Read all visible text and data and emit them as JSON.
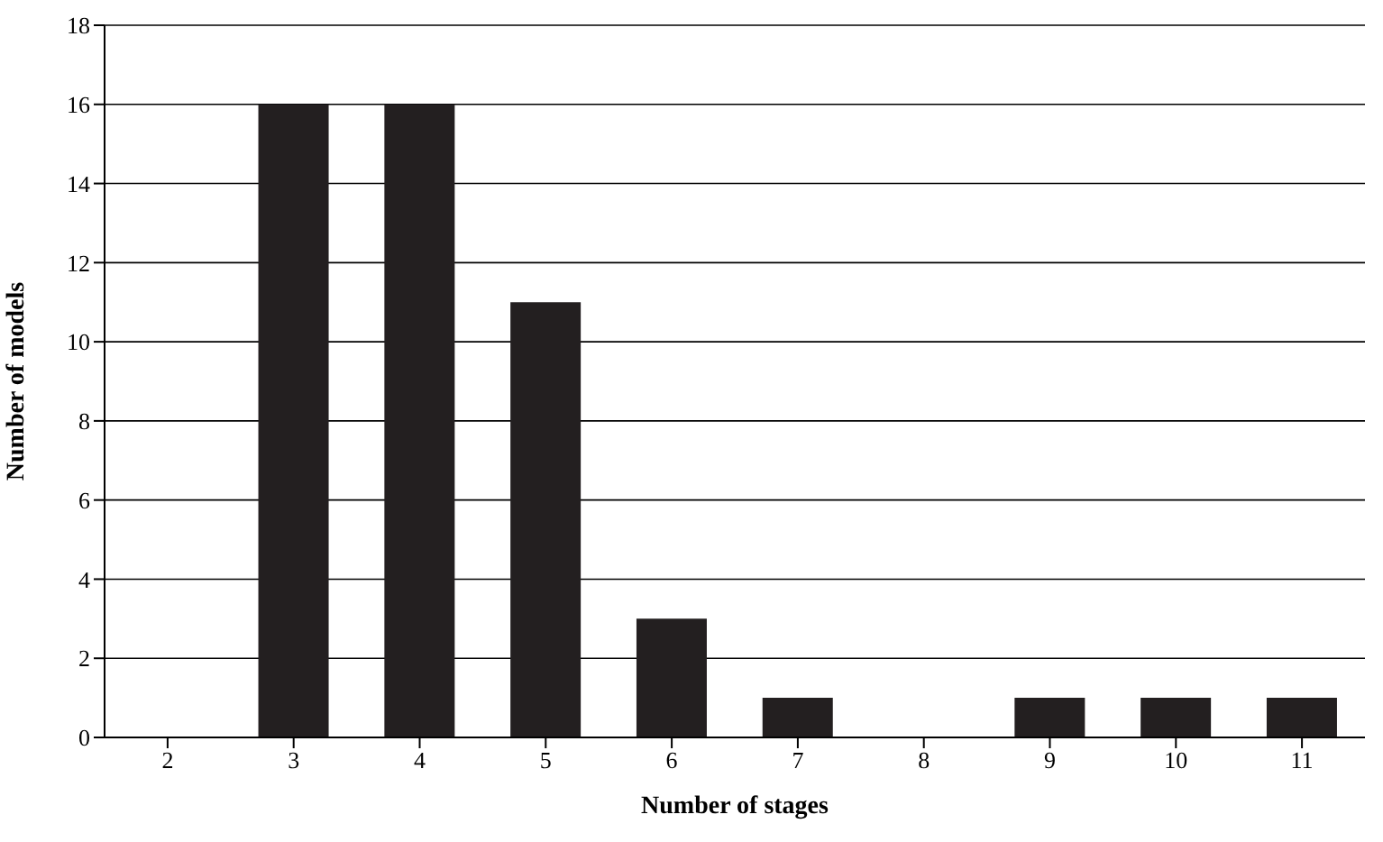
{
  "chart_data": {
    "type": "bar",
    "xlabel": "Number of stages",
    "ylabel": "Number of models",
    "categories": [
      "2",
      "3",
      "4",
      "5",
      "6",
      "7",
      "8",
      "9",
      "10",
      "11"
    ],
    "values": [
      0,
      16,
      16,
      11,
      3,
      1,
      0,
      1,
      1,
      1
    ],
    "color": "#231f20",
    "ylim": [
      0,
      18
    ],
    "yticks": [
      0,
      2,
      4,
      6,
      8,
      10,
      12,
      14,
      16,
      18
    ],
    "grid": "y"
  }
}
